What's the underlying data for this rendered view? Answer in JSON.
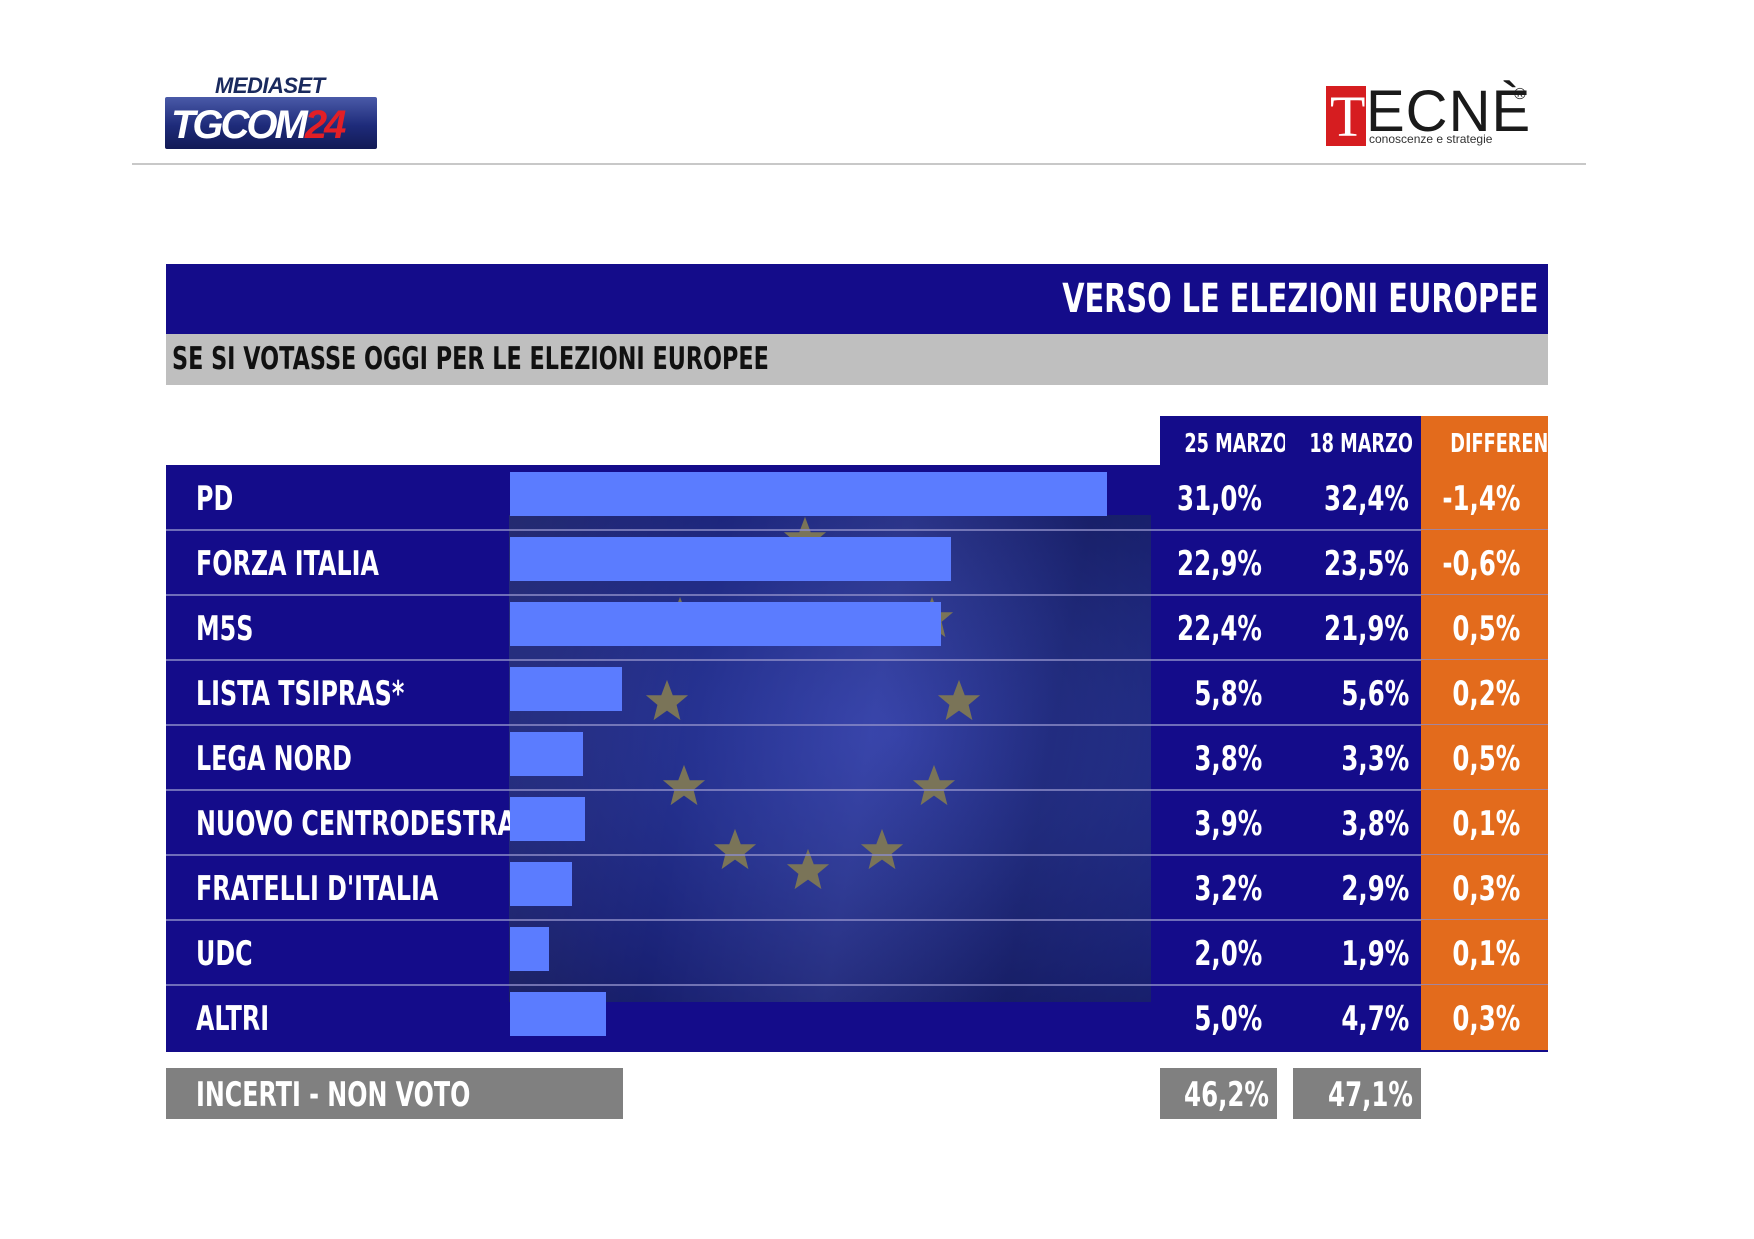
{
  "header": {
    "mediaset_logo": {
      "word1": "MEDIASET",
      "word2_a": "TG",
      "word2_b": "COM",
      "word2_c": "24"
    },
    "tecne_logo": {
      "initial": "T",
      "rest": "ECNÈ",
      "registered": "®",
      "tagline": "conoscenze e strategie"
    }
  },
  "titles": {
    "main": "VERSO LE ELEZIONI EUROPEE",
    "sub": "SE SI VOTASSE OGGI PER LE ELEZIONI EUROPEE"
  },
  "columns": {
    "c25": "25 MARZO",
    "c18": "18 MARZO",
    "diff": "DIFFERENZA"
  },
  "colors": {
    "navy": "#140c8a",
    "bar": "#5b7cff",
    "orange": "#e36b1c",
    "gray": "#808080",
    "subtitle_gray": "#bfbfbf"
  },
  "chart_data": {
    "type": "bar",
    "orientation": "horizontal",
    "title": "VERSO LE ELEZIONI EUROPEE",
    "subtitle": "SE SI VOTASSE OGGI PER LE ELEZIONI EUROPEE",
    "categories": [
      "PD",
      "FORZA ITALIA",
      "M5S",
      "LISTA TSIPRAS*",
      "LEGA NORD",
      "NUOVO CENTRODESTRA",
      "FRATELLI D'ITALIA",
      "UDC",
      "ALTRI"
    ],
    "values": [
      31.0,
      22.9,
      22.4,
      5.8,
      3.8,
      3.9,
      3.2,
      2.0,
      5.0
    ],
    "table": {
      "25 MARZO": [
        "31,0%",
        "22,9%",
        "22,4%",
        "5,8%",
        "3,8%",
        "3,9%",
        "3,2%",
        "2,0%",
        "5,0%"
      ],
      "18 MARZO": [
        "32,4%",
        "23,5%",
        "21,9%",
        "5,6%",
        "3,3%",
        "3,8%",
        "2,9%",
        "1,9%",
        "4,7%"
      ],
      "DIFFERENZA": [
        "-1,4%",
        "-0,6%",
        "0,5%",
        "0,2%",
        "0,5%",
        "0,1%",
        "0,3%",
        "0,1%",
        "0,3%"
      ]
    },
    "undecided": {
      "label": "INCERTI - NON VOTO",
      "c25": "46,2%",
      "c18": "47,1%"
    }
  }
}
